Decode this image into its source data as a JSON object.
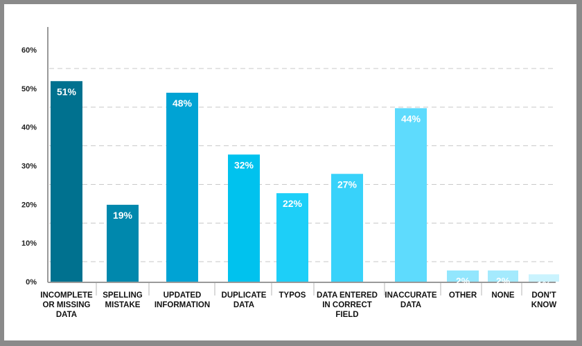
{
  "chart_data": {
    "type": "bar",
    "categories": [
      [
        "INCOMPLETE",
        "OR MISSING",
        "DATA"
      ],
      [
        "SPELLING",
        "MISTAKE"
      ],
      [
        "UPDATED",
        "INFORMATION"
      ],
      [
        "DUPLICATE",
        "DATA"
      ],
      [
        "TYPOS"
      ],
      [
        "DATA ENTERED",
        "IN CORRECT",
        "FIELD"
      ],
      [
        "INACCURATE",
        "DATA"
      ],
      [
        "OTHER"
      ],
      [
        "NONE"
      ],
      [
        "DON'T",
        "KNOW"
      ]
    ],
    "values": [
      51,
      19,
      48,
      32,
      22,
      27,
      44,
      2,
      2,
      1
    ],
    "value_labels": [
      "51%",
      "19%",
      "48%",
      "32%",
      "22%",
      "27%",
      "44%",
      "2%",
      "2%",
      "1%"
    ],
    "bar_colors": [
      "#00718f",
      "#0088ad",
      "#00a3d4",
      "#00c2ee",
      "#1dcff8",
      "#38d2fa",
      "#5edbfd",
      "#92e6fd",
      "#a4eafd",
      "#caf3fe"
    ],
    "ytick_labels": [
      "0%",
      "10%",
      "20%",
      "30%",
      "40%",
      "50%",
      "60%"
    ],
    "ylim": [
      0,
      60
    ],
    "grid": true,
    "title": "",
    "xlabel": "",
    "ylabel": ""
  }
}
